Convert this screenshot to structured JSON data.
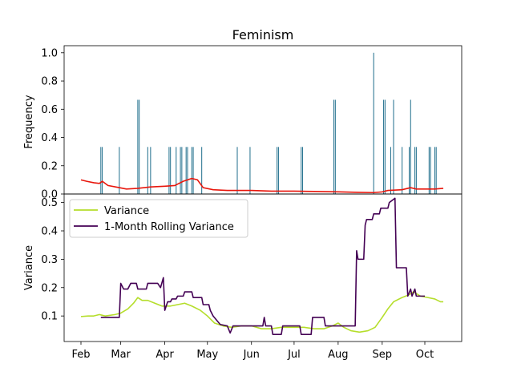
{
  "chart_data": [
    {
      "type": "bar",
      "title": "Feminism",
      "xlabel": "",
      "ylabel": "Frequency",
      "ylim": [
        0,
        1.05
      ],
      "yticks": [
        "0.0",
        "0.2",
        "0.4",
        "0.6",
        "0.8",
        "1.0"
      ],
      "grid": false,
      "bar_color": "#1f6e8c",
      "line_color": "#e8160c",
      "bars": [
        {
          "x": "2023-02-15",
          "y": 0.333
        },
        {
          "x": "2023-02-16",
          "y": 0.333
        },
        {
          "x": "2023-02-28",
          "y": 0.333
        },
        {
          "x": "2023-03-13",
          "y": 0.667
        },
        {
          "x": "2023-03-14",
          "y": 0.667
        },
        {
          "x": "2023-03-20",
          "y": 0.333
        },
        {
          "x": "2023-03-22",
          "y": 0.333
        },
        {
          "x": "2023-04-04",
          "y": 0.333
        },
        {
          "x": "2023-04-05",
          "y": 0.333
        },
        {
          "x": "2023-04-09",
          "y": 0.333
        },
        {
          "x": "2023-04-12",
          "y": 0.333
        },
        {
          "x": "2023-04-13",
          "y": 0.333
        },
        {
          "x": "2023-04-16",
          "y": 0.333
        },
        {
          "x": "2023-04-17",
          "y": 0.333
        },
        {
          "x": "2023-04-20",
          "y": 0.333
        },
        {
          "x": "2023-04-21",
          "y": 0.333
        },
        {
          "x": "2023-04-27",
          "y": 0.333
        },
        {
          "x": "2023-05-22",
          "y": 0.333
        },
        {
          "x": "2023-05-31",
          "y": 0.333
        },
        {
          "x": "2023-06-19",
          "y": 0.333
        },
        {
          "x": "2023-06-20",
          "y": 0.333
        },
        {
          "x": "2023-07-06",
          "y": 0.333
        },
        {
          "x": "2023-07-07",
          "y": 0.333
        },
        {
          "x": "2023-07-29",
          "y": 0.667
        },
        {
          "x": "2023-07-30",
          "y": 0.667
        },
        {
          "x": "2023-08-26",
          "y": 1.0
        },
        {
          "x": "2023-09-02",
          "y": 0.667
        },
        {
          "x": "2023-09-03",
          "y": 0.667
        },
        {
          "x": "2023-09-07",
          "y": 0.333
        },
        {
          "x": "2023-09-09",
          "y": 0.667
        },
        {
          "x": "2023-09-15",
          "y": 0.333
        },
        {
          "x": "2023-09-20",
          "y": 0.333
        },
        {
          "x": "2023-09-21",
          "y": 0.667
        },
        {
          "x": "2023-09-24",
          "y": 0.333
        },
        {
          "x": "2023-09-25",
          "y": 0.333
        },
        {
          "x": "2023-10-04",
          "y": 0.333
        },
        {
          "x": "2023-10-05",
          "y": 0.333
        },
        {
          "x": "2023-10-08",
          "y": 0.333
        },
        {
          "x": "2023-10-09",
          "y": 0.333
        }
      ],
      "line": [
        {
          "x": "2023-02-01",
          "y": 0.1
        },
        {
          "x": "2023-02-05",
          "y": 0.09
        },
        {
          "x": "2023-02-10",
          "y": 0.08
        },
        {
          "x": "2023-02-14",
          "y": 0.075
        },
        {
          "x": "2023-02-16",
          "y": 0.09
        },
        {
          "x": "2023-02-20",
          "y": 0.06
        },
        {
          "x": "2023-02-28",
          "y": 0.045
        },
        {
          "x": "2023-03-05",
          "y": 0.035
        },
        {
          "x": "2023-03-13",
          "y": 0.04
        },
        {
          "x": "2023-03-22",
          "y": 0.05
        },
        {
          "x": "2023-04-01",
          "y": 0.055
        },
        {
          "x": "2023-04-08",
          "y": 0.06
        },
        {
          "x": "2023-04-14",
          "y": 0.09
        },
        {
          "x": "2023-04-20",
          "y": 0.11
        },
        {
          "x": "2023-04-24",
          "y": 0.1
        },
        {
          "x": "2023-04-28",
          "y": 0.045
        },
        {
          "x": "2023-05-05",
          "y": 0.03
        },
        {
          "x": "2023-05-15",
          "y": 0.025
        },
        {
          "x": "2023-06-01",
          "y": 0.025
        },
        {
          "x": "2023-06-15",
          "y": 0.02
        },
        {
          "x": "2023-07-01",
          "y": 0.02
        },
        {
          "x": "2023-07-15",
          "y": 0.018
        },
        {
          "x": "2023-08-01",
          "y": 0.015
        },
        {
          "x": "2023-08-15",
          "y": 0.012
        },
        {
          "x": "2023-08-26",
          "y": 0.01
        },
        {
          "x": "2023-09-01",
          "y": 0.015
        },
        {
          "x": "2023-09-05",
          "y": 0.025
        },
        {
          "x": "2023-09-15",
          "y": 0.03
        },
        {
          "x": "2023-09-21",
          "y": 0.045
        },
        {
          "x": "2023-09-25",
          "y": 0.035
        },
        {
          "x": "2023-10-01",
          "y": 0.035
        },
        {
          "x": "2023-10-08",
          "y": 0.035
        },
        {
          "x": "2023-10-14",
          "y": 0.04
        }
      ]
    },
    {
      "type": "line",
      "title": "",
      "xlabel": "",
      "ylabel": "Variance",
      "ylim": [
        0.01,
        0.53
      ],
      "yticks": [
        "0.1",
        "0.2",
        "0.3",
        "0.4",
        "0.5"
      ],
      "xticks": [
        "Feb",
        "Mar",
        "Apr",
        "May",
        "Jun",
        "Jul",
        "Aug",
        "Sep",
        "Oct"
      ],
      "grid": false,
      "legend_position": "top-left",
      "series": [
        {
          "name": "Variance",
          "color": "#b5de2b",
          "points": [
            {
              "x": "2023-02-01",
              "y": 0.098
            },
            {
              "x": "2023-02-06",
              "y": 0.1
            },
            {
              "x": "2023-02-10",
              "y": 0.1
            },
            {
              "x": "2023-02-14",
              "y": 0.105
            },
            {
              "x": "2023-02-18",
              "y": 0.1
            },
            {
              "x": "2023-02-25",
              "y": 0.105
            },
            {
              "x": "2023-03-01",
              "y": 0.11
            },
            {
              "x": "2023-03-06",
              "y": 0.125
            },
            {
              "x": "2023-03-10",
              "y": 0.145
            },
            {
              "x": "2023-03-13",
              "y": 0.165
            },
            {
              "x": "2023-03-16",
              "y": 0.155
            },
            {
              "x": "2023-03-20",
              "y": 0.155
            },
            {
              "x": "2023-03-25",
              "y": 0.145
            },
            {
              "x": "2023-03-30",
              "y": 0.135
            },
            {
              "x": "2023-04-05",
              "y": 0.135
            },
            {
              "x": "2023-04-10",
              "y": 0.14
            },
            {
              "x": "2023-04-15",
              "y": 0.145
            },
            {
              "x": "2023-04-20",
              "y": 0.135
            },
            {
              "x": "2023-04-26",
              "y": 0.12
            },
            {
              "x": "2023-05-01",
              "y": 0.1
            },
            {
              "x": "2023-05-06",
              "y": 0.075
            },
            {
              "x": "2023-05-12",
              "y": 0.065
            },
            {
              "x": "2023-05-18",
              "y": 0.06
            },
            {
              "x": "2023-05-25",
              "y": 0.065
            },
            {
              "x": "2023-06-01",
              "y": 0.065
            },
            {
              "x": "2023-06-08",
              "y": 0.055
            },
            {
              "x": "2023-06-15",
              "y": 0.055
            },
            {
              "x": "2023-06-22",
              "y": 0.06
            },
            {
              "x": "2023-07-01",
              "y": 0.06
            },
            {
              "x": "2023-07-08",
              "y": 0.06
            },
            {
              "x": "2023-07-15",
              "y": 0.055
            },
            {
              "x": "2023-07-22",
              "y": 0.055
            },
            {
              "x": "2023-07-28",
              "y": 0.065
            },
            {
              "x": "2023-08-01",
              "y": 0.075
            },
            {
              "x": "2023-08-05",
              "y": 0.06
            },
            {
              "x": "2023-08-10",
              "y": 0.048
            },
            {
              "x": "2023-08-16",
              "y": 0.043
            },
            {
              "x": "2023-08-22",
              "y": 0.048
            },
            {
              "x": "2023-08-27",
              "y": 0.06
            },
            {
              "x": "2023-09-01",
              "y": 0.095
            },
            {
              "x": "2023-09-05",
              "y": 0.125
            },
            {
              "x": "2023-09-09",
              "y": 0.15
            },
            {
              "x": "2023-09-15",
              "y": 0.165
            },
            {
              "x": "2023-09-20",
              "y": 0.175
            },
            {
              "x": "2023-09-23",
              "y": 0.185
            },
            {
              "x": "2023-09-28",
              "y": 0.17
            },
            {
              "x": "2023-10-03",
              "y": 0.165
            },
            {
              "x": "2023-10-08",
              "y": 0.16
            },
            {
              "x": "2023-10-12",
              "y": 0.15
            },
            {
              "x": "2023-10-14",
              "y": 0.15
            }
          ]
        },
        {
          "name": "1-Month Rolling Variance",
          "color": "#440154",
          "points": [
            {
              "x": "2023-02-15",
              "y": 0.095
            },
            {
              "x": "2023-02-28",
              "y": 0.095
            },
            {
              "x": "2023-03-01",
              "y": 0.215
            },
            {
              "x": "2023-03-03",
              "y": 0.195
            },
            {
              "x": "2023-03-06",
              "y": 0.195
            },
            {
              "x": "2023-03-08",
              "y": 0.215
            },
            {
              "x": "2023-03-12",
              "y": 0.215
            },
            {
              "x": "2023-03-13",
              "y": 0.195
            },
            {
              "x": "2023-03-19",
              "y": 0.195
            },
            {
              "x": "2023-03-20",
              "y": 0.215
            },
            {
              "x": "2023-03-27",
              "y": 0.215
            },
            {
              "x": "2023-03-29",
              "y": 0.2
            },
            {
              "x": "2023-03-31",
              "y": 0.235
            },
            {
              "x": "2023-04-01",
              "y": 0.12
            },
            {
              "x": "2023-04-03",
              "y": 0.15
            },
            {
              "x": "2023-04-05",
              "y": 0.15
            },
            {
              "x": "2023-04-06",
              "y": 0.16
            },
            {
              "x": "2023-04-09",
              "y": 0.16
            },
            {
              "x": "2023-04-10",
              "y": 0.17
            },
            {
              "x": "2023-04-14",
              "y": 0.17
            },
            {
              "x": "2023-04-15",
              "y": 0.185
            },
            {
              "x": "2023-04-20",
              "y": 0.185
            },
            {
              "x": "2023-04-21",
              "y": 0.165
            },
            {
              "x": "2023-04-27",
              "y": 0.165
            },
            {
              "x": "2023-04-28",
              "y": 0.14
            },
            {
              "x": "2023-05-02",
              "y": 0.14
            },
            {
              "x": "2023-05-03",
              "y": 0.12
            },
            {
              "x": "2023-05-05",
              "y": 0.1
            },
            {
              "x": "2023-05-10",
              "y": 0.07
            },
            {
              "x": "2023-05-15",
              "y": 0.065
            },
            {
              "x": "2023-05-17",
              "y": 0.04
            },
            {
              "x": "2023-05-19",
              "y": 0.065
            },
            {
              "x": "2023-05-29",
              "y": 0.065
            },
            {
              "x": "2023-06-01",
              "y": 0.065
            },
            {
              "x": "2023-06-09",
              "y": 0.065
            },
            {
              "x": "2023-06-10",
              "y": 0.095
            },
            {
              "x": "2023-06-11",
              "y": 0.065
            },
            {
              "x": "2023-06-15",
              "y": 0.065
            },
            {
              "x": "2023-06-16",
              "y": 0.035
            },
            {
              "x": "2023-06-22",
              "y": 0.035
            },
            {
              "x": "2023-06-23",
              "y": 0.065
            },
            {
              "x": "2023-07-05",
              "y": 0.065
            },
            {
              "x": "2023-07-06",
              "y": 0.035
            },
            {
              "x": "2023-07-13",
              "y": 0.035
            },
            {
              "x": "2023-07-14",
              "y": 0.095
            },
            {
              "x": "2023-07-22",
              "y": 0.095
            },
            {
              "x": "2023-07-23",
              "y": 0.065
            },
            {
              "x": "2023-08-13",
              "y": 0.065
            },
            {
              "x": "2023-08-14",
              "y": 0.33
            },
            {
              "x": "2023-08-15",
              "y": 0.3
            },
            {
              "x": "2023-08-19",
              "y": 0.3
            },
            {
              "x": "2023-08-20",
              "y": 0.42
            },
            {
              "x": "2023-08-21",
              "y": 0.44
            },
            {
              "x": "2023-08-25",
              "y": 0.44
            },
            {
              "x": "2023-08-26",
              "y": 0.46
            },
            {
              "x": "2023-08-30",
              "y": 0.46
            },
            {
              "x": "2023-08-31",
              "y": 0.48
            },
            {
              "x": "2023-09-05",
              "y": 0.48
            },
            {
              "x": "2023-09-06",
              "y": 0.5
            },
            {
              "x": "2023-09-10",
              "y": 0.515
            },
            {
              "x": "2023-09-11",
              "y": 0.27
            },
            {
              "x": "2023-09-18",
              "y": 0.27
            },
            {
              "x": "2023-09-19",
              "y": 0.17
            },
            {
              "x": "2023-09-21",
              "y": 0.195
            },
            {
              "x": "2023-09-22",
              "y": 0.17
            },
            {
              "x": "2023-09-24",
              "y": 0.195
            },
            {
              "x": "2023-09-25",
              "y": 0.17
            },
            {
              "x": "2023-10-01",
              "y": 0.17
            }
          ]
        }
      ]
    }
  ]
}
